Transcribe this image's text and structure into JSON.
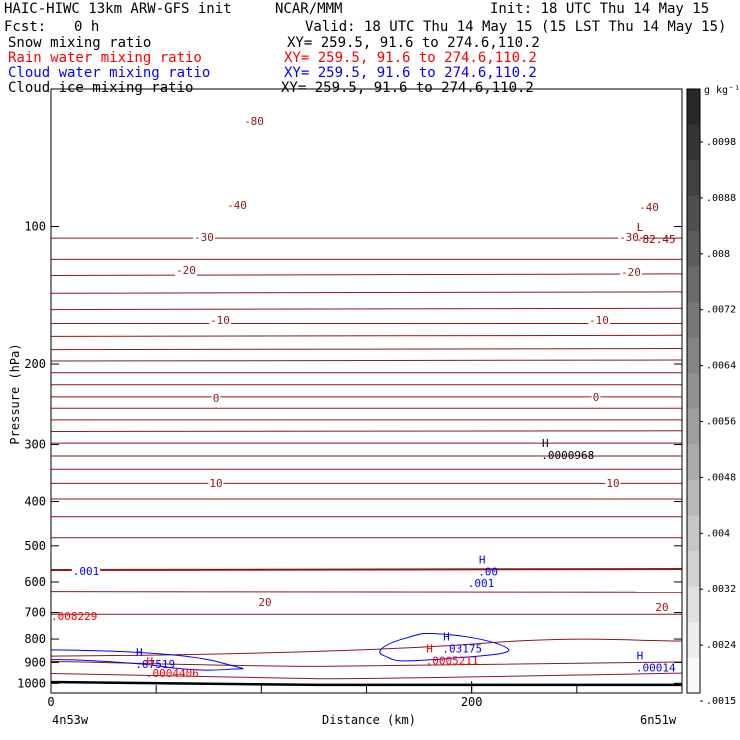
{
  "header": {
    "model_title": "HAIC-HIWC 13km ARW-GFS init",
    "org": "NCAR/MMM",
    "init": "Init: 18 UTC Thu 14 May 15",
    "fcst_label": "Fcst:",
    "fcst_value": "0 h",
    "valid": "Valid: 18 UTC Thu 14 May 15 (15 LST Thu 14 May 15)"
  },
  "fields": [
    {
      "name": "Snow mixing ratio",
      "xy": "XY= 259.5, 91.6 to 274.6,110.2",
      "color": "#000000"
    },
    {
      "name": "Rain water mixing ratio",
      "xy": "XY= 259.5, 91.6 to 274.6,110.2",
      "color": "#ff0000"
    },
    {
      "name": "Cloud water mixing ratio",
      "xy": "XY= 259.5, 91.6 to 274.6,110.2",
      "color": "#0000ff"
    },
    {
      "name": "Cloud ice mixing ratio",
      "xy": "XY= 259.5, 91.6 to 274.6,110.2",
      "color": "#000000"
    }
  ],
  "chart_data": {
    "type": "contour",
    "xlabel": "Distance (km)",
    "ylabel": "Pressure (hPa)",
    "x_ticks": [
      0,
      200
    ],
    "x_range": [
      0,
      300
    ],
    "y_ticks": [
      100,
      200,
      300,
      400,
      500,
      600,
      700,
      800,
      900,
      1000
    ],
    "y_range": [
      50,
      1050
    ],
    "y_scale": "log",
    "endpoint_left": "4n53w",
    "endpoint_right": "6n51w",
    "colorbar": {
      "unit": "g kg⁻¹",
      "labels": [
        ".0098",
        ".0088",
        ".008",
        ".0072",
        ".0064",
        ".0056",
        ".0048",
        ".004",
        ".0032",
        ".0024",
        ".0015"
      ]
    },
    "temperature_labels": [
      "-80",
      "-40",
      "-40",
      "-30",
      "-30",
      "-20",
      "-20",
      "-10",
      "-10",
      "0",
      "0",
      "10",
      "10",
      "20",
      "20"
    ],
    "markers": [
      {
        "letter": "L",
        "value": "-82.45",
        "color": "#8b0000",
        "x": 280,
        "p": 107
      },
      {
        "letter": "H",
        "value": ".0000968",
        "color": "#000000",
        "x": 235,
        "p": 318
      },
      {
        "letter": "H",
        "value": ".00",
        "color": "#0000ff",
        "x": 205,
        "p": 572
      },
      {
        "letter": "H",
        "value": ".03175",
        "color": "#0000ff",
        "x": 188,
        "p": 843
      },
      {
        "letter": "H",
        "value": ".0005211",
        "color": "#ff0000",
        "x": 180,
        "p": 896
      },
      {
        "letter": "H",
        "value": ".07519",
        "color": "#0000ff",
        "x": 42,
        "p": 912
      },
      {
        "letter": "H",
        "value": ".00014",
        "color": "#0000ff",
        "x": 280,
        "p": 928
      },
      {
        "letter": "H",
        "value": ".0004406",
        "color": "#ff0000",
        "x": 47,
        "p": 955
      }
    ],
    "cloud_contour_labels": [
      ".001",
      ".001"
    ],
    "rain_left_label": ".008229"
  }
}
